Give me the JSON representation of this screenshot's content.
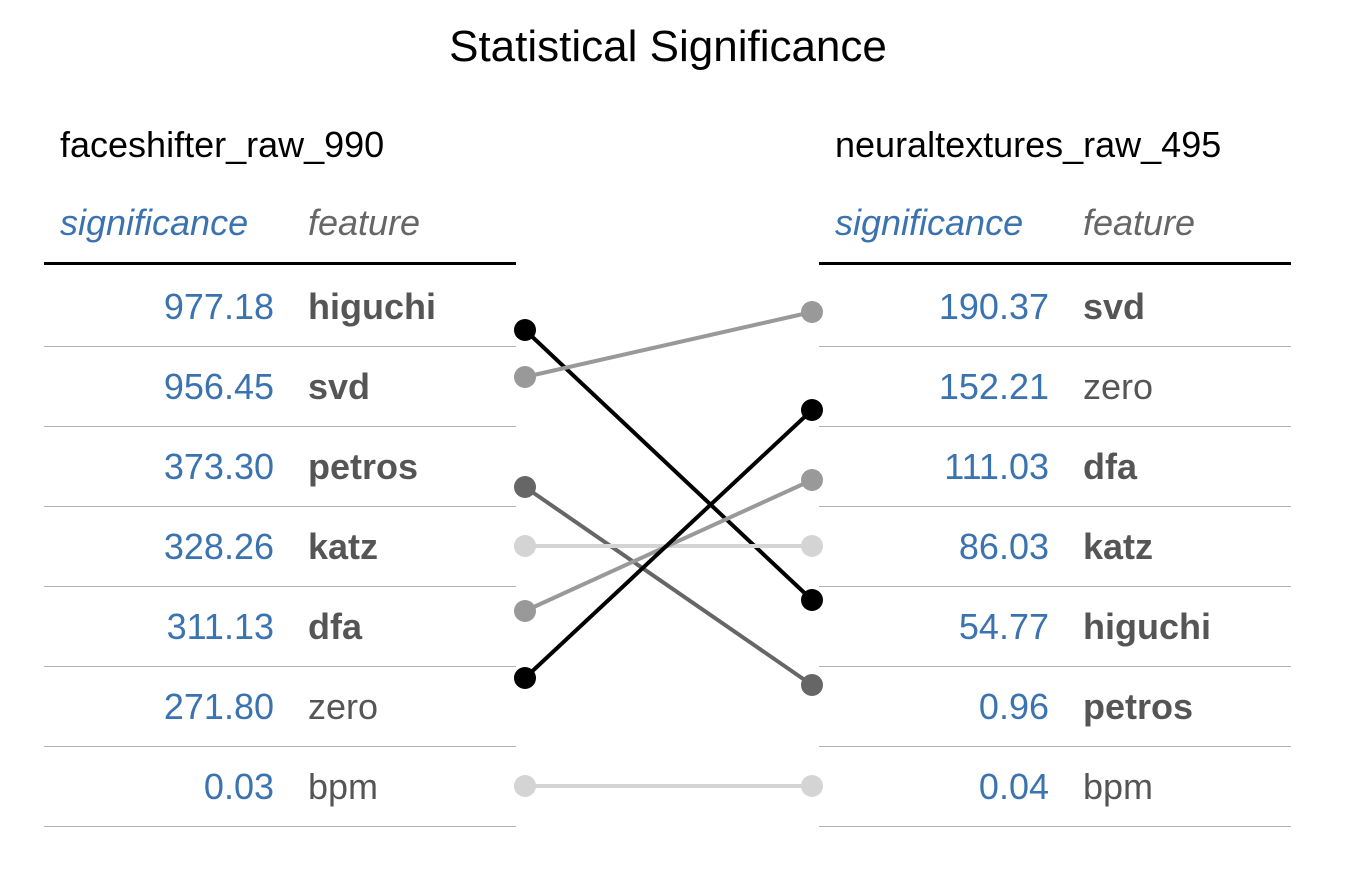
{
  "chart_data": {
    "type": "table",
    "title": "Statistical Significance",
    "colors": {
      "value_text": "#3a73b0",
      "header_feature": "#666666",
      "feature_text": "#555555"
    },
    "left": {
      "name": "faceshifter_raw_990",
      "columns": [
        "significance",
        "feature"
      ],
      "rows": [
        {
          "value": "977.18",
          "feature": "higuchi",
          "bold": true
        },
        {
          "value": "956.45",
          "feature": "svd",
          "bold": true
        },
        {
          "value": "373.30",
          "feature": "petros",
          "bold": true
        },
        {
          "value": "328.26",
          "feature": "katz",
          "bold": true
        },
        {
          "value": "311.13",
          "feature": "dfa",
          "bold": true
        },
        {
          "value": "271.80",
          "feature": "zero",
          "bold": false
        },
        {
          "value": "0.03",
          "feature": "bpm",
          "bold": false
        }
      ]
    },
    "right": {
      "name": "neuraltextures_raw_495",
      "columns": [
        "significance",
        "feature"
      ],
      "rows": [
        {
          "value": "190.37",
          "feature": "svd",
          "bold": true
        },
        {
          "value": "152.21",
          "feature": "zero",
          "bold": false
        },
        {
          "value": "111.03",
          "feature": "dfa",
          "bold": true
        },
        {
          "value": "86.03",
          "feature": "katz",
          "bold": true
        },
        {
          "value": "54.77",
          "feature": "higuchi",
          "bold": true
        },
        {
          "value": "0.96",
          "feature": "petros",
          "bold": true
        },
        {
          "value": "0.04",
          "feature": "bpm",
          "bold": false
        }
      ]
    },
    "links": [
      {
        "feature": "higuchi",
        "from_rank": 1,
        "to_rank": 5,
        "color": "#000000"
      },
      {
        "feature": "svd",
        "from_rank": 2,
        "to_rank": 1,
        "color": "#999999"
      },
      {
        "feature": "petros",
        "from_rank": 3,
        "to_rank": 6,
        "color": "#666666"
      },
      {
        "feature": "katz",
        "from_rank": 4,
        "to_rank": 4,
        "color": "#d4d4d4"
      },
      {
        "feature": "dfa",
        "from_rank": 5,
        "to_rank": 3,
        "color": "#999999"
      },
      {
        "feature": "zero",
        "from_rank": 6,
        "to_rank": 2,
        "color": "#000000"
      },
      {
        "feature": "bpm",
        "from_rank": 7,
        "to_rank": 7,
        "color": "#d4d4d4"
      }
    ]
  }
}
